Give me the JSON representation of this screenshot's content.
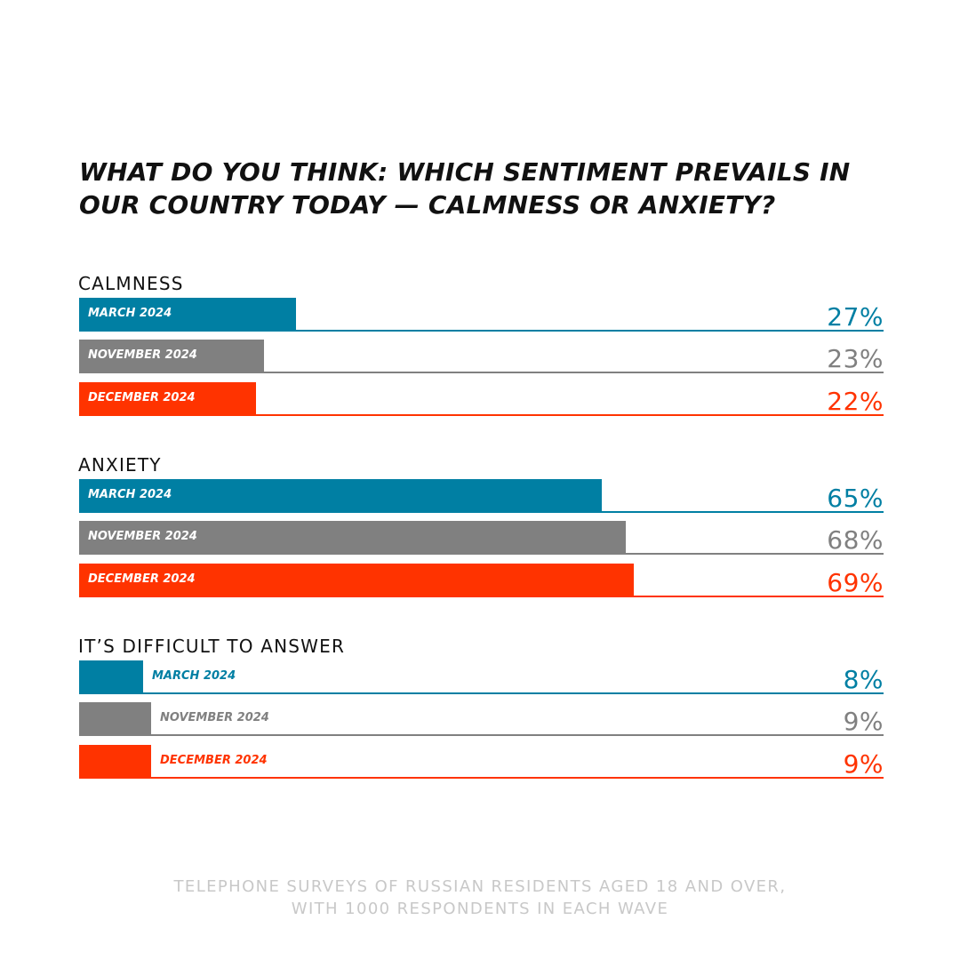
{
  "title": "WHAT DO YOU THINK: WHICH SENTIMENT PREVAILS IN OUR COUNTRY TODAY — CALMNESS OR ANXIETY?",
  "footnote": {
    "line1": "TELEPHONE SURVEYS OF RUSSIAN RESIDENTS AGED 18 AND OVER,",
    "line2": "WITH 1000 RESPONDENTS IN EACH WAVE"
  },
  "colors": {
    "MARCH 2024": "#007fa3",
    "NOVEMBER 2024": "#808080",
    "DECEMBER 2024": "#ff3300"
  },
  "chart_data": {
    "type": "bar",
    "orientation": "horizontal",
    "unit": "%",
    "xlim": [
      0,
      100
    ],
    "categories": [
      "CALMNESS",
      "ANXIETY",
      "IT’S DIFFICULT TO ANSWER"
    ],
    "series": [
      {
        "name": "MARCH 2024",
        "color": "#007fa3",
        "values": [
          27,
          65,
          8
        ],
        "value_labels": [
          "27%",
          "65%",
          "8%"
        ]
      },
      {
        "name": "NOVEMBER 2024",
        "color": "#808080",
        "values": [
          23,
          68,
          9
        ],
        "value_labels": [
          "23%",
          "68%",
          "9%"
        ]
      },
      {
        "name": "DECEMBER 2024",
        "color": "#ff3300",
        "values": [
          22,
          69,
          9
        ],
        "value_labels": [
          "22%",
          "69%",
          "9%"
        ]
      }
    ]
  }
}
